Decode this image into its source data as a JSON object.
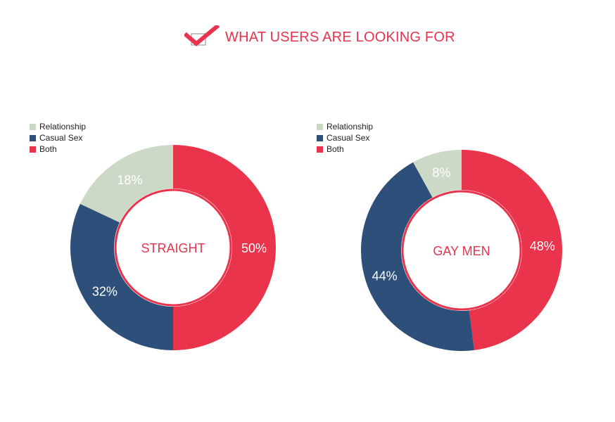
{
  "header": {
    "title": "WHAT USERS ARE LOOKING FOR",
    "icon": "checkbox-check-icon"
  },
  "colors": {
    "relationship": "#cdd9c7",
    "casual_sex": "#2d4f7a",
    "both": "#ea344c",
    "center_text": "#e8334f"
  },
  "chart_data": [
    {
      "type": "pie",
      "title": "STRAIGHT",
      "legend": [
        "Relationship",
        "Casual Sex",
        "Both"
      ],
      "legend_position": "top-left",
      "series": [
        {
          "name": "Relationship",
          "value": 18,
          "label": "18%"
        },
        {
          "name": "Casual Sex",
          "value": 32,
          "label": "32%"
        },
        {
          "name": "Both",
          "value": 50,
          "label": "50%"
        }
      ]
    },
    {
      "type": "pie",
      "title": "GAY MEN",
      "legend": [
        "Relationship",
        "Casual Sex",
        "Both"
      ],
      "legend_position": "top-left",
      "series": [
        {
          "name": "Relationship",
          "value": 8,
          "label": "8%"
        },
        {
          "name": "Casual Sex",
          "value": 44,
          "label": "44%"
        },
        {
          "name": "Both",
          "value": 48,
          "label": "48%"
        }
      ]
    }
  ]
}
